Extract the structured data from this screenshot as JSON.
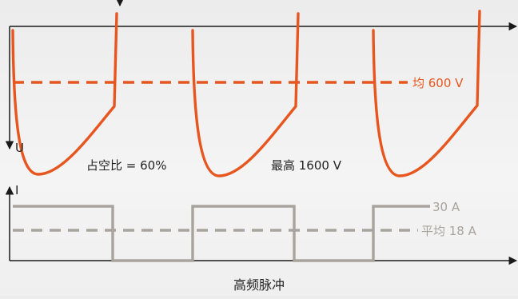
{
  "voltage": {
    "axis_label": "U",
    "avg_label": "均 600 V",
    "peak_label": "最高 1600 V",
    "duty_label": "占空比 = 60%",
    "color": "#e8561f"
  },
  "current": {
    "axis_label": "I",
    "high_label": "30 A",
    "avg_label": "平均 18 A",
    "color": "#a8a39c"
  },
  "caption": "高频脉冲",
  "colors": {
    "axis": "#1a1a1a",
    "text": "#222222"
  }
}
